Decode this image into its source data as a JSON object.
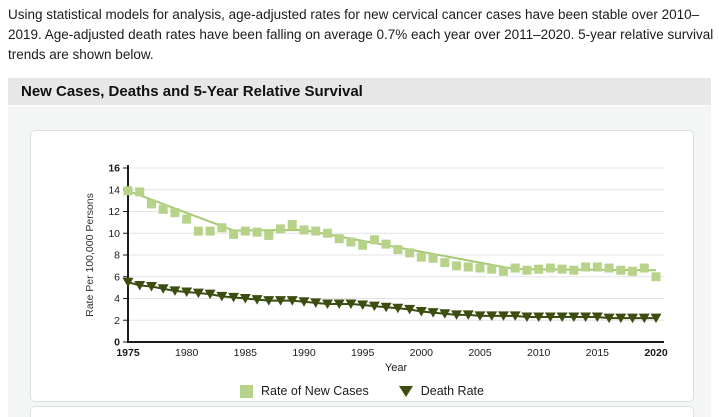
{
  "page": {
    "intro_text": "Using statistical models for analysis, age-adjusted rates for new cervical cancer cases have been stable over 2010–2019. Age-adjusted death rates have been falling on average 0.7% each year over 2011–2020. 5-year relative survival trends are shown below.",
    "section_title": "New Cases, Deaths and 5-Year Relative Survival"
  },
  "colors": {
    "header_bg": "#e7e7e7",
    "panel_bg": "#f4f6f6",
    "grid": "#e4e4e4",
    "axis": "#1b1b1b",
    "new_cases": "#b6d389",
    "new_cases_line": "#a6c873",
    "death_rate": "#3b4d10"
  },
  "chart_data": {
    "type": "scatter",
    "title": "New Cases, Deaths and 5-Year Relative Survival",
    "xlabel": "Year",
    "ylabel": "Rate Per 100,000 Persons",
    "xlim": [
      1975,
      2020
    ],
    "ylim": [
      0,
      16
    ],
    "x_ticks": [
      1975,
      1980,
      1985,
      1990,
      1995,
      2000,
      2005,
      2010,
      2015,
      2020
    ],
    "y_ticks": [
      0,
      2,
      4,
      6,
      8,
      10,
      12,
      14,
      16
    ],
    "grid": "horizontal",
    "legend_position": "bottom",
    "years": [
      1975,
      1976,
      1977,
      1978,
      1979,
      1980,
      1981,
      1982,
      1983,
      1984,
      1985,
      1986,
      1987,
      1988,
      1989,
      1990,
      1991,
      1992,
      1993,
      1994,
      1995,
      1996,
      1997,
      1998,
      1999,
      2000,
      2001,
      2002,
      2003,
      2004,
      2005,
      2006,
      2007,
      2008,
      2009,
      2010,
      2011,
      2012,
      2013,
      2014,
      2015,
      2016,
      2017,
      2018,
      2019,
      2020
    ],
    "series": [
      {
        "name": "Rate of New Cases",
        "marker": "square",
        "color": "#b6d389",
        "line_color": "#a6c873",
        "values": [
          13.9,
          13.8,
          12.7,
          12.2,
          11.9,
          11.3,
          10.2,
          10.2,
          10.5,
          9.9,
          10.2,
          10.1,
          9.8,
          10.4,
          10.8,
          10.3,
          10.2,
          10.0,
          9.5,
          9.2,
          8.9,
          9.4,
          9.0,
          8.5,
          8.2,
          7.8,
          7.7,
          7.3,
          7.0,
          6.9,
          6.8,
          6.7,
          6.5,
          6.8,
          6.6,
          6.7,
          6.8,
          6.7,
          6.6,
          6.9,
          6.9,
          6.8,
          6.6,
          6.5,
          6.8,
          6.0
        ],
        "trend_joinpoints": [
          [
            1975,
            13.9
          ],
          [
            1984,
            10.25
          ],
          [
            1990,
            10.3
          ],
          [
            2008,
            6.7
          ],
          [
            2020,
            6.6
          ]
        ]
      },
      {
        "name": "Death Rate",
        "marker": "triangle-down",
        "color": "#3b4d10",
        "line_color": "#3b4d10",
        "values": [
          5.5,
          5.2,
          5.1,
          4.9,
          4.7,
          4.6,
          4.5,
          4.4,
          4.2,
          4.1,
          4.0,
          3.9,
          3.8,
          3.8,
          3.8,
          3.7,
          3.6,
          3.5,
          3.5,
          3.5,
          3.4,
          3.3,
          3.2,
          3.1,
          3.0,
          2.8,
          2.7,
          2.6,
          2.5,
          2.5,
          2.4,
          2.4,
          2.4,
          2.4,
          2.3,
          2.3,
          2.3,
          2.3,
          2.3,
          2.3,
          2.3,
          2.2,
          2.2,
          2.2,
          2.2,
          2.2
        ],
        "trend_joinpoints": "connect"
      }
    ]
  }
}
